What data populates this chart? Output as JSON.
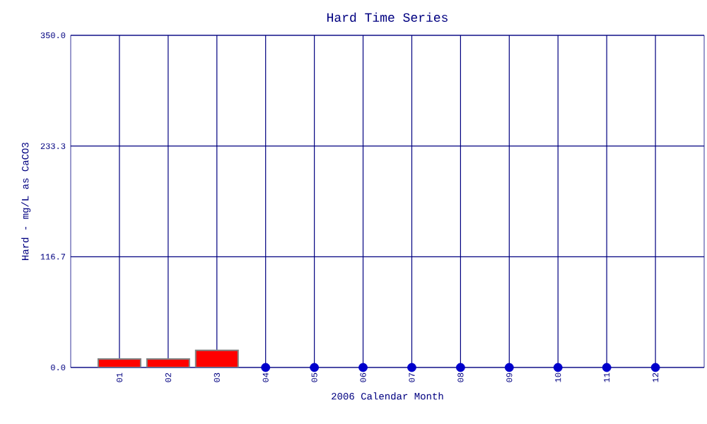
{
  "chart_data": {
    "type": "bar",
    "title": "Hard Time Series",
    "xlabel": "2006 Calendar Month",
    "ylabel": "Hard - mg/L as CaCO3",
    "categories": [
      "01",
      "02",
      "03",
      "04",
      "05",
      "06",
      "07",
      "08",
      "09",
      "10",
      "11",
      "12"
    ],
    "series": [
      {
        "color": "#ff0000",
        "values": [
          9,
          9,
          18,
          null,
          null,
          null,
          null,
          null,
          null,
          null,
          null,
          null
        ]
      },
      {
        "type": "scatter",
        "color": "#0000cc",
        "marker": "circle",
        "values": [
          null,
          null,
          null,
          0,
          0,
          0,
          0,
          0,
          0,
          0,
          0,
          0
        ]
      }
    ],
    "ylim": [
      0,
      350
    ],
    "yticks": [
      {
        "value": 0,
        "label": "0.0"
      },
      116.7,
      233.3,
      {
        "value": 350,
        "label": "350.0"
      }
    ],
    "grid": true
  }
}
